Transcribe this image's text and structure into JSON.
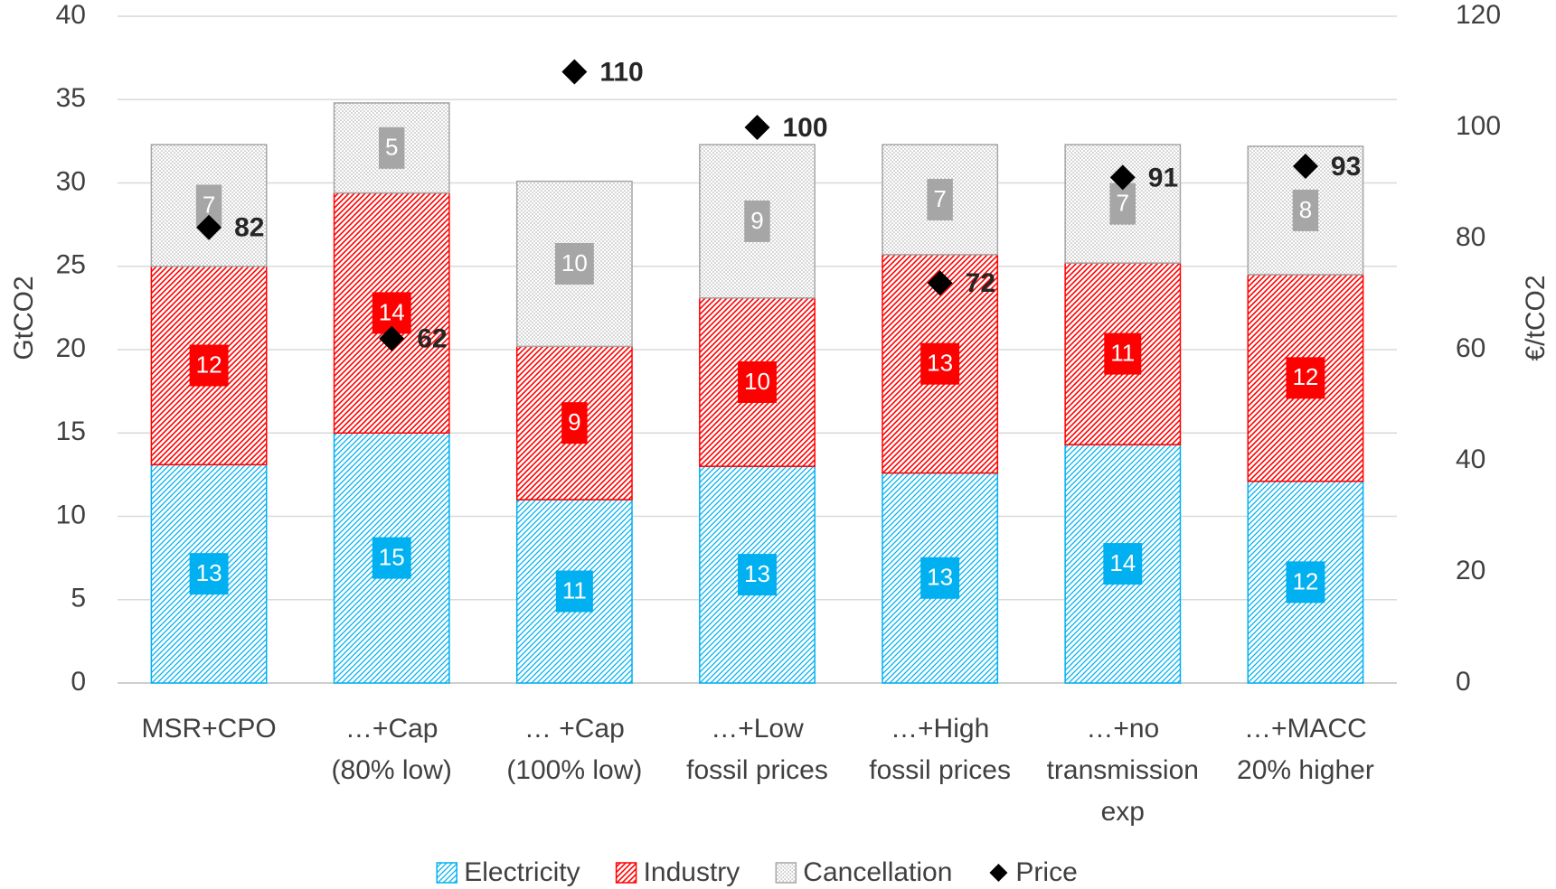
{
  "chart_data": {
    "type": "bar",
    "stacked": true,
    "categories": [
      "MSR+CPO",
      "…+Cap (80% low)",
      "… +Cap (100% low)",
      "…+Low fossil prices",
      "…+High fossil prices",
      "…+no transmission exp",
      "…+MACC 20% higher"
    ],
    "series": [
      {
        "name": "Electricity",
        "color": "#00b0f0",
        "values": [
          13.1,
          15.0,
          11.0,
          13.0,
          12.6,
          14.3,
          12.1
        ],
        "value_labels": [
          "13",
          "15",
          "11",
          "13",
          "13",
          "14",
          "12"
        ]
      },
      {
        "name": "Industry",
        "color": "#ff0000",
        "values": [
          11.9,
          14.4,
          9.2,
          10.1,
          13.1,
          10.9,
          12.4
        ],
        "value_labels": [
          "12",
          "14",
          "9",
          "10",
          "13",
          "11",
          "12"
        ]
      },
      {
        "name": "Cancellation",
        "color": "#a6a6a6",
        "values": [
          7.3,
          5.4,
          9.9,
          9.2,
          6.6,
          7.1,
          7.7
        ],
        "value_labels": [
          "7",
          "5",
          "10",
          "9",
          "7",
          "7",
          "8"
        ]
      },
      {
        "name": "Price",
        "type": "scatter",
        "axis": "y2",
        "color": "#000000",
        "values": [
          82,
          62,
          110,
          100,
          72,
          91,
          93
        ]
      }
    ],
    "y_label": "GtCO2",
    "y2_label": "€/tCO2",
    "ylim": [
      0,
      40
    ],
    "yticks": [
      0,
      5,
      10,
      15,
      20,
      25,
      30,
      35,
      40
    ],
    "y2lim": [
      0,
      120
    ],
    "y2ticks": [
      0,
      20,
      40,
      60,
      80,
      100,
      120
    ],
    "grid": true,
    "legend": "bottom"
  }
}
